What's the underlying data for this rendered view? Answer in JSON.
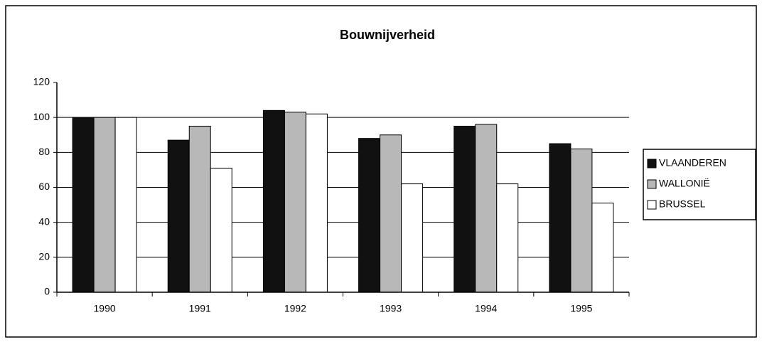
{
  "chart_data": {
    "type": "bar",
    "title": "Bouwnijverheid",
    "categories": [
      "1990",
      "1991",
      "1992",
      "1993",
      "1994",
      "1995"
    ],
    "series": [
      {
        "name": "VLAANDEREN",
        "color": "#111111",
        "values": [
          100,
          87,
          104,
          88,
          95,
          85
        ]
      },
      {
        "name": "WALLONIË",
        "color": "#b8b8b8",
        "values": [
          100,
          95,
          103,
          90,
          96,
          82
        ]
      },
      {
        "name": "BRUSSEL",
        "color": "#ffffff",
        "values": [
          100,
          71,
          102,
          62,
          62,
          51
        ]
      }
    ],
    "ylim": [
      0,
      120
    ],
    "yticks": [
      0,
      20,
      40,
      60,
      80,
      100,
      120
    ],
    "grid": true,
    "legend": "right"
  }
}
